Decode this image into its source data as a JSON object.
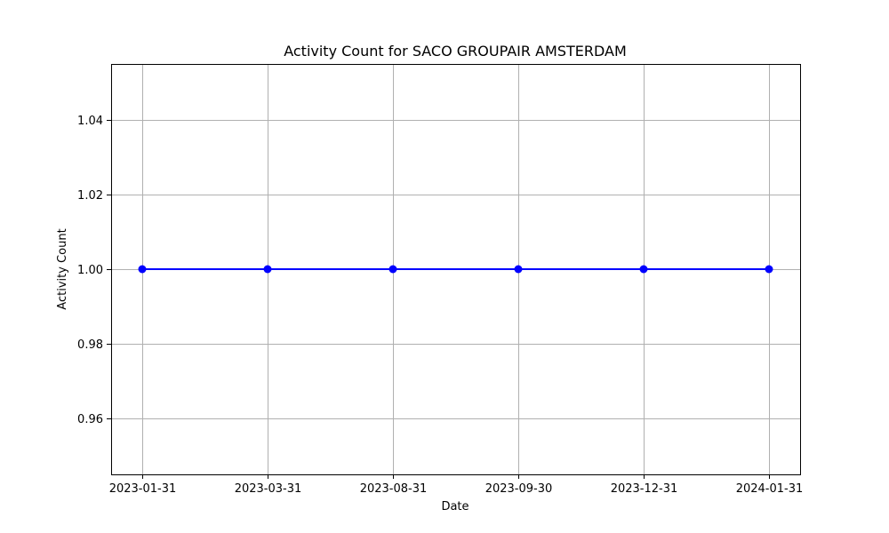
{
  "chart_data": {
    "type": "line",
    "title": "Activity Count for SACO GROUPAIR AMSTERDAM",
    "xlabel": "Date",
    "ylabel": "Activity Count",
    "categories": [
      "2023-01-31",
      "2023-03-31",
      "2023-08-31",
      "2023-09-30",
      "2023-12-31",
      "2024-01-31"
    ],
    "series": [
      {
        "values": [
          1,
          1,
          1,
          1,
          1,
          1
        ],
        "color": "#0000ff",
        "marker": "circle"
      }
    ],
    "ylim": [
      0.945,
      1.055
    ],
    "yticks": [
      0.96,
      0.98,
      1.0,
      1.02,
      1.04
    ],
    "ytick_labels": [
      "0.96",
      "0.98",
      "1.00",
      "1.02",
      "1.04"
    ],
    "grid": true,
    "legend": "none"
  }
}
